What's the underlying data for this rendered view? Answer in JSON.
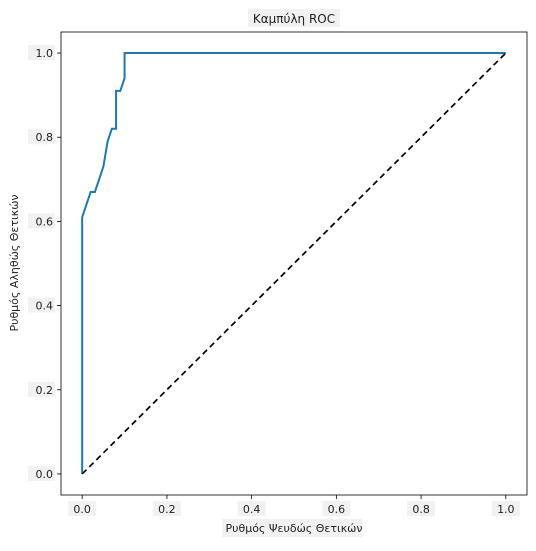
{
  "chart_data": {
    "type": "line",
    "title": "Καμπύλη ROC",
    "xlabel": "Ρυθμός Ψευδώς Θετικών",
    "ylabel": "Ρυθμός Αληθώς Θετικών",
    "xlim": [
      -0.05,
      1.05
    ],
    "ylim": [
      -0.05,
      1.05
    ],
    "xticks": [
      0.0,
      0.2,
      0.4,
      0.6,
      0.8,
      1.0
    ],
    "yticks": [
      0.0,
      0.2,
      0.4,
      0.6,
      0.8,
      1.0
    ],
    "xtick_labels": [
      "0.0",
      "0.2",
      "0.4",
      "0.6",
      "0.8",
      "1.0"
    ],
    "ytick_labels": [
      "0.0",
      "0.2",
      "0.4",
      "0.6",
      "0.8",
      "1.0"
    ],
    "grid": false,
    "legend": "none",
    "series": [
      {
        "style": "solid",
        "color": "#1f77b4",
        "x": [
          0.0,
          0.0,
          0.0,
          0.02,
          0.03,
          0.05,
          0.06,
          0.07,
          0.08,
          0.08,
          0.09,
          0.1,
          0.1,
          1.0
        ],
        "y": [
          0.0,
          0.33,
          0.61,
          0.67,
          0.67,
          0.73,
          0.79,
          0.82,
          0.82,
          0.91,
          0.91,
          0.94,
          1.0,
          1.0
        ]
      },
      {
        "style": "dashed",
        "color": "#000000",
        "x": [
          0.0,
          1.0
        ],
        "y": [
          0.0,
          1.0
        ]
      }
    ]
  }
}
